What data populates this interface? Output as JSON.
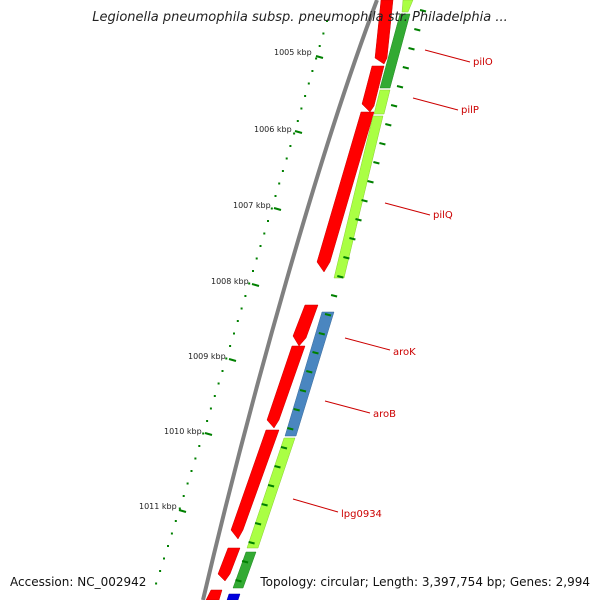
{
  "title": "Legionella pneumophila subsp. pneumophila str. Philadelphia ...",
  "accession": "Accession: NC_002942",
  "summary": "Topology: circular; Length: 3,397,754 bp; Genes: 2,994",
  "ticks": [
    "1005 kbp",
    "1006 kbp",
    "1007 kbp",
    "1008 kbp",
    "1009 kbp",
    "1010 kbp",
    "1011 kbp"
  ],
  "genes": [
    "pilO",
    "pilP",
    "pilQ",
    "aroK",
    "aroB",
    "lpg0934"
  ],
  "colors": {
    "cds": "#ff0000",
    "feature_light_green": "#aaff44",
    "feature_dark_green": "#33aa33",
    "feature_blue": "#4a86c0",
    "backbone": "#808080",
    "ticks": "#008000",
    "label": "#cc0000"
  }
}
